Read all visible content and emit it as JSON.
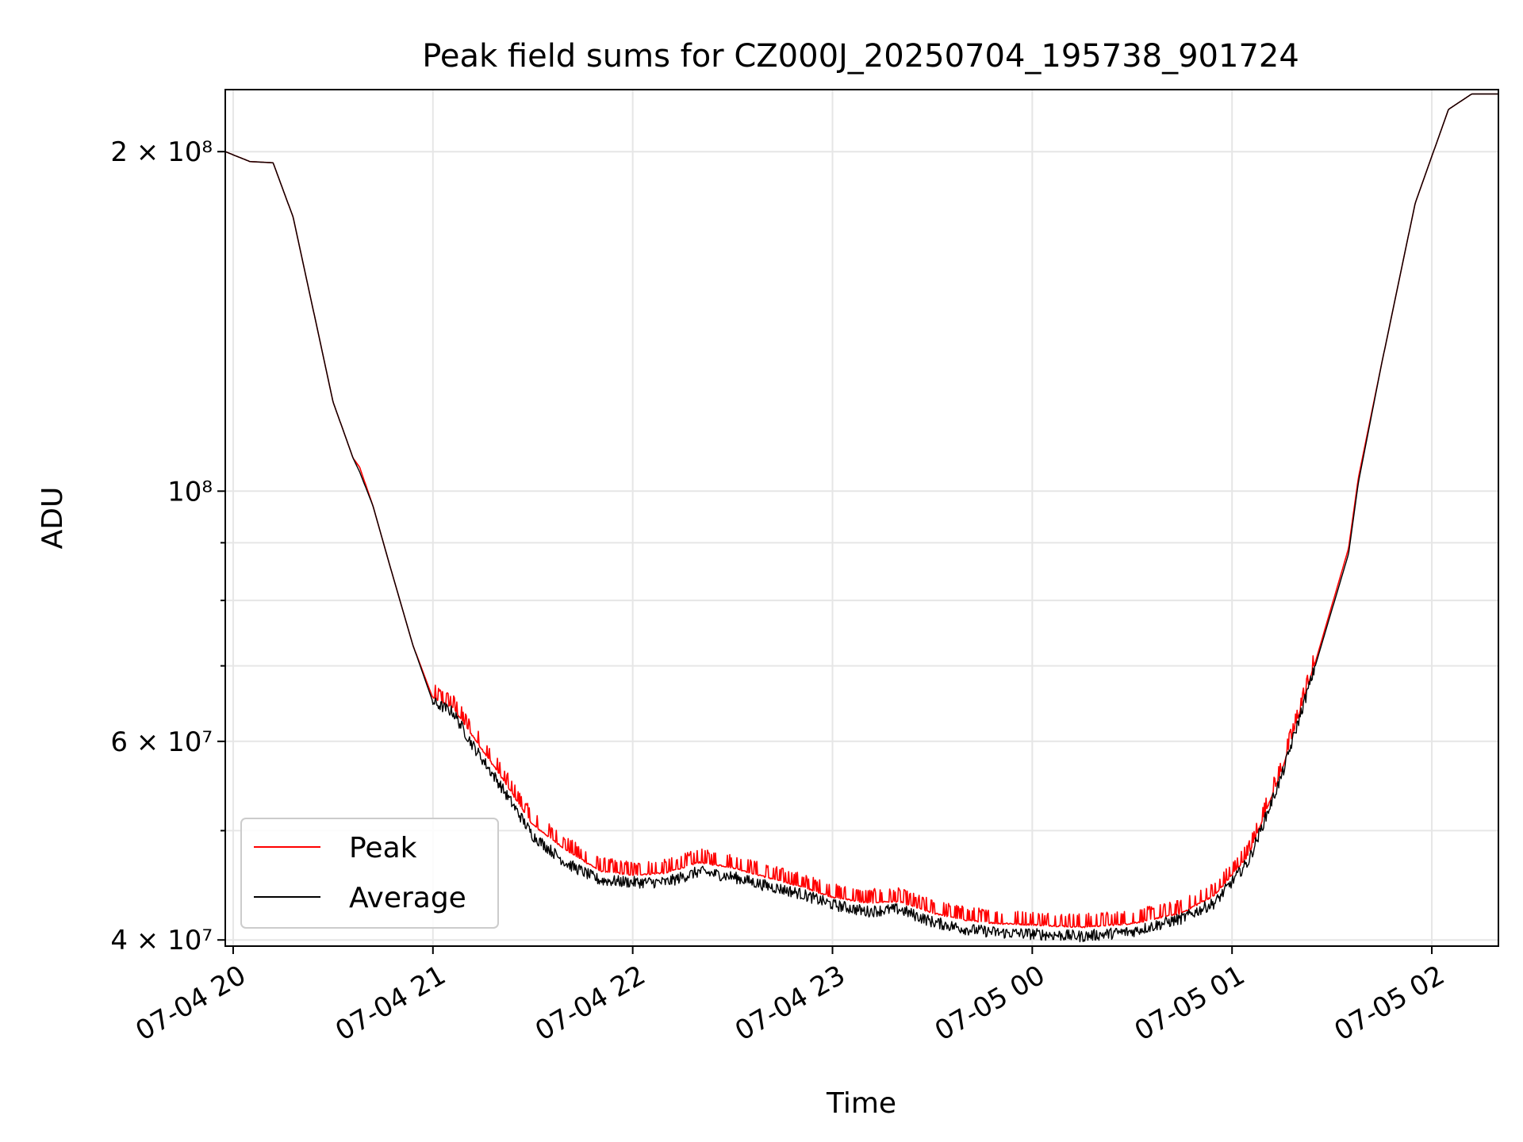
{
  "chart_data": {
    "type": "line",
    "title": "Peak field sums for CZ000J_20250704_195738_901724",
    "xlabel": "Time",
    "ylabel": "ADU",
    "yscale": "log",
    "ylim": [
      39500000,
      227000000
    ],
    "xlim": [
      "2025-07-04 19:57:38",
      "2025-07-05 02:20:00"
    ],
    "grid": true,
    "legend_position": "lower-left",
    "x_ticks": [
      {
        "t": "2025-07-04 20:00",
        "label": "07-04 20"
      },
      {
        "t": "2025-07-04 21:00",
        "label": "07-04 21"
      },
      {
        "t": "2025-07-04 22:00",
        "label": "07-04 22"
      },
      {
        "t": "2025-07-04 23:00",
        "label": "07-04 23"
      },
      {
        "t": "2025-07-05 00:00",
        "label": "07-05 00"
      },
      {
        "t": "2025-07-05 01:00",
        "label": "07-05 01"
      },
      {
        "t": "2025-07-05 02:00",
        "label": "07-05 02"
      }
    ],
    "y_ticks": [
      {
        "v": 40000000,
        "label": "4 × 10⁷"
      },
      {
        "v": 60000000,
        "label": "6 × 10⁷"
      },
      {
        "v": 100000000,
        "label": "10⁸"
      },
      {
        "v": 200000000,
        "label": "2 × 10⁸"
      }
    ],
    "y_minor_ticks": [
      50000000,
      70000000,
      80000000,
      90000000
    ],
    "series": [
      {
        "name": "Peak",
        "color": "#ff0000",
        "x": [
          "2025-07-04 19:57:38",
          "2025-07-04 20:05",
          "2025-07-04 20:12",
          "2025-07-04 20:18",
          "2025-07-04 20:24",
          "2025-07-04 20:30",
          "2025-07-04 20:36",
          "2025-07-04 20:38",
          "2025-07-04 20:42",
          "2025-07-04 20:48",
          "2025-07-04 20:54",
          "2025-07-04 21:00",
          "2025-07-04 21:06",
          "2025-07-04 21:12",
          "2025-07-04 21:20",
          "2025-07-04 21:30",
          "2025-07-04 21:40",
          "2025-07-04 21:50",
          "2025-07-04 22:00",
          "2025-07-04 22:10",
          "2025-07-04 22:20",
          "2025-07-04 22:30",
          "2025-07-04 22:40",
          "2025-07-04 22:50",
          "2025-07-04 23:00",
          "2025-07-04 23:10",
          "2025-07-04 23:20",
          "2025-07-04 23:30",
          "2025-07-04 23:40",
          "2025-07-04 23:50",
          "2025-07-05 00:00",
          "2025-07-05 00:15",
          "2025-07-05 00:30",
          "2025-07-05 00:45",
          "2025-07-05 00:55",
          "2025-07-05 01:05",
          "2025-07-05 01:15",
          "2025-07-05 01:25",
          "2025-07-05 01:35",
          "2025-07-05 01:38",
          "2025-07-05 01:45",
          "2025-07-05 01:55",
          "2025-07-05 02:05",
          "2025-07-05 02:12",
          "2025-07-05 02:20"
        ],
        "y": [
          200000000,
          196000000,
          195500000,
          175000000,
          145000000,
          120000000,
          107000000,
          105000000,
          97000000,
          84000000,
          73000000,
          65500000,
          64200000,
          60500000,
          56000000,
          50500000,
          48000000,
          46000000,
          45600000,
          45800000,
          46800000,
          46300000,
          45400000,
          44600000,
          43600000,
          43100000,
          43200000,
          42200000,
          41600000,
          41300000,
          41200000,
          41000000,
          41300000,
          42200000,
          43800000,
          47500000,
          56500000,
          70500000,
          89000000,
          103000000,
          130000000,
          180000000,
          218000000,
          225000000,
          225000000
        ],
        "noise": 0.03,
        "noise_sign": "up"
      },
      {
        "name": "Average",
        "color": "#000000",
        "x": [
          "2025-07-04 19:57:38",
          "2025-07-04 20:05",
          "2025-07-04 20:12",
          "2025-07-04 20:18",
          "2025-07-04 20:24",
          "2025-07-04 20:30",
          "2025-07-04 20:36",
          "2025-07-04 20:38",
          "2025-07-04 20:42",
          "2025-07-04 20:48",
          "2025-07-04 20:54",
          "2025-07-04 21:00",
          "2025-07-04 21:06",
          "2025-07-04 21:12",
          "2025-07-04 21:20",
          "2025-07-04 21:30",
          "2025-07-04 21:40",
          "2025-07-04 21:50",
          "2025-07-04 22:00",
          "2025-07-04 22:10",
          "2025-07-04 22:20",
          "2025-07-04 22:30",
          "2025-07-04 22:40",
          "2025-07-04 22:50",
          "2025-07-04 23:00",
          "2025-07-04 23:10",
          "2025-07-04 23:20",
          "2025-07-04 23:30",
          "2025-07-04 23:40",
          "2025-07-04 23:50",
          "2025-07-05 00:00",
          "2025-07-05 00:15",
          "2025-07-05 00:30",
          "2025-07-05 00:45",
          "2025-07-05 00:55",
          "2025-07-05 01:05",
          "2025-07-05 01:15",
          "2025-07-05 01:25",
          "2025-07-05 01:35",
          "2025-07-05 01:38",
          "2025-07-05 01:45",
          "2025-07-05 01:55",
          "2025-07-05 02:05",
          "2025-07-05 02:12",
          "2025-07-05 02:20"
        ],
        "y": [
          200000000,
          196000000,
          195500000,
          175000000,
          145000000,
          120000000,
          107000000,
          104000000,
          97000000,
          84000000,
          73000000,
          65000000,
          63700000,
          59500000,
          55000000,
          49500000,
          46800000,
          45200000,
          45000000,
          45000000,
          46000000,
          45500000,
          44700000,
          44000000,
          43000000,
          42400000,
          42600000,
          41500000,
          40900000,
          40600000,
          40500000,
          40300000,
          40700000,
          41800000,
          43200000,
          47000000,
          56000000,
          70000000,
          88000000,
          102000000,
          130000000,
          180000000,
          218000000,
          225000000,
          225000000
        ],
        "noise": 0.012,
        "noise_sign": "both"
      }
    ]
  }
}
